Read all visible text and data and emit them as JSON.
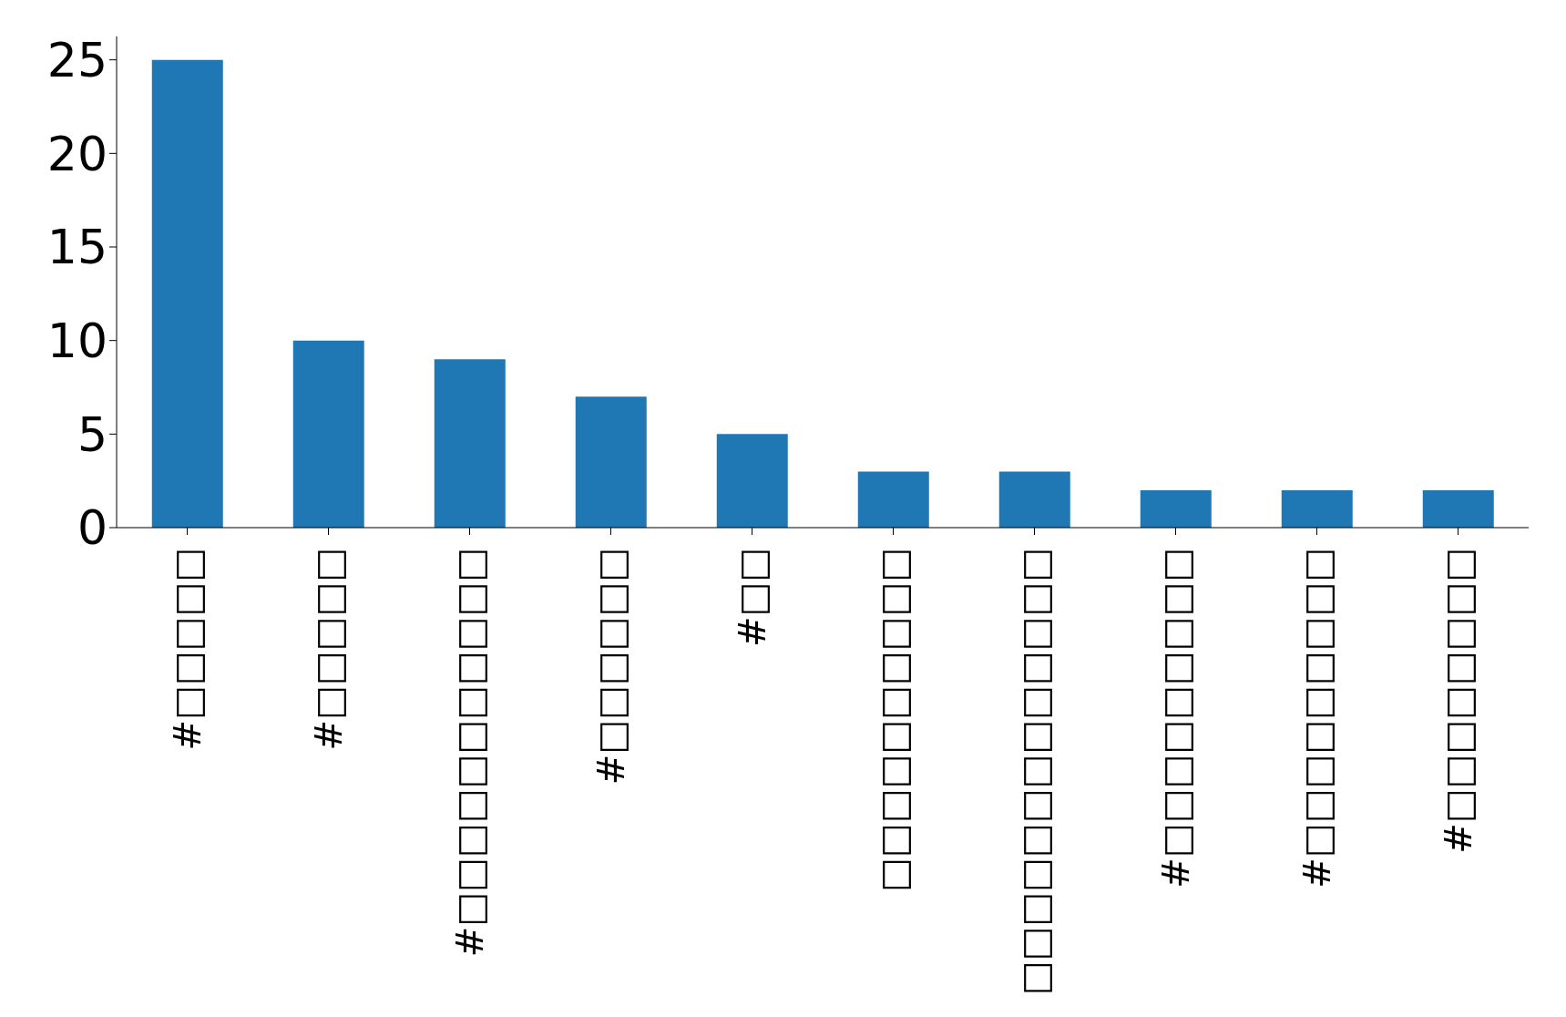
{
  "chart_data": {
    "type": "bar",
    "categories": [
      "#□□□□□",
      "#□□□□□",
      "#□□□□□□□□□□□",
      "#□□□□□□",
      "#□□",
      "□□□□□□□□□□",
      "□□□□□□□□□□□□□",
      "#□□□□□□□□□",
      "#□□□□□□□□□",
      "#□□□□□□□□"
    ],
    "values": [
      25,
      10,
      9,
      7,
      5,
      3,
      3,
      2,
      2,
      2
    ],
    "color": "#1f77b4",
    "ylim": [
      0,
      26.25
    ],
    "yticks": [
      0,
      5,
      10,
      15,
      20,
      25
    ],
    "grid": false
  }
}
